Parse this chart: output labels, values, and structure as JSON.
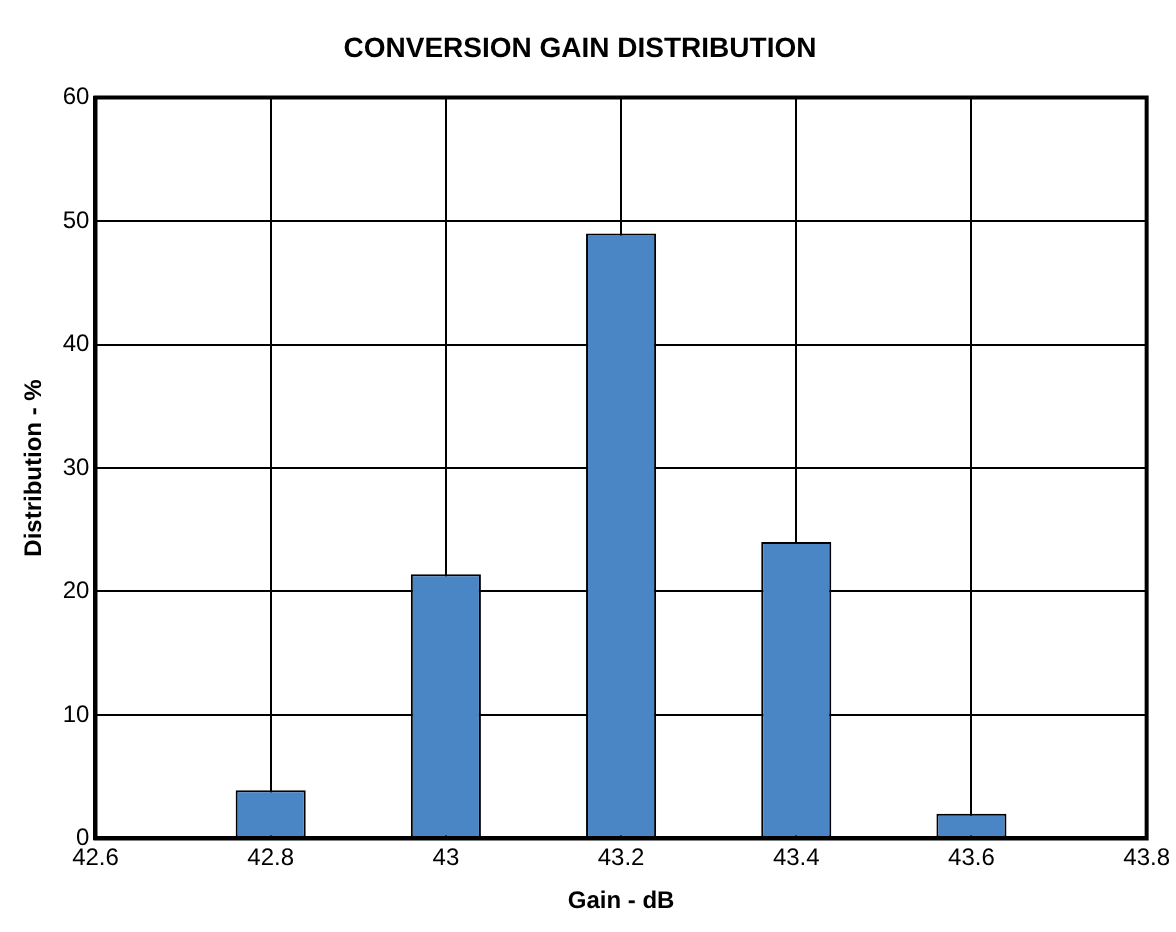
{
  "chart_data": {
    "type": "bar",
    "title": "CONVERSION GAIN DISTRIBUTION",
    "xlabel": "Gain - dB",
    "ylabel": "Distribution - %",
    "x": [
      42.8,
      43,
      43.2,
      43.4,
      43.6
    ],
    "values": [
      3.9,
      21.4,
      49,
      24,
      2
    ],
    "color": "#4a86c5",
    "xlim": [
      42.6,
      43.8
    ],
    "xticks": [
      42.6,
      42.8,
      43,
      43.2,
      43.4,
      43.6,
      43.8
    ],
    "ylim": [
      0,
      60
    ],
    "yticks": [
      0,
      10,
      20,
      30,
      40,
      50,
      60
    ],
    "grid": true,
    "legend": false
  }
}
